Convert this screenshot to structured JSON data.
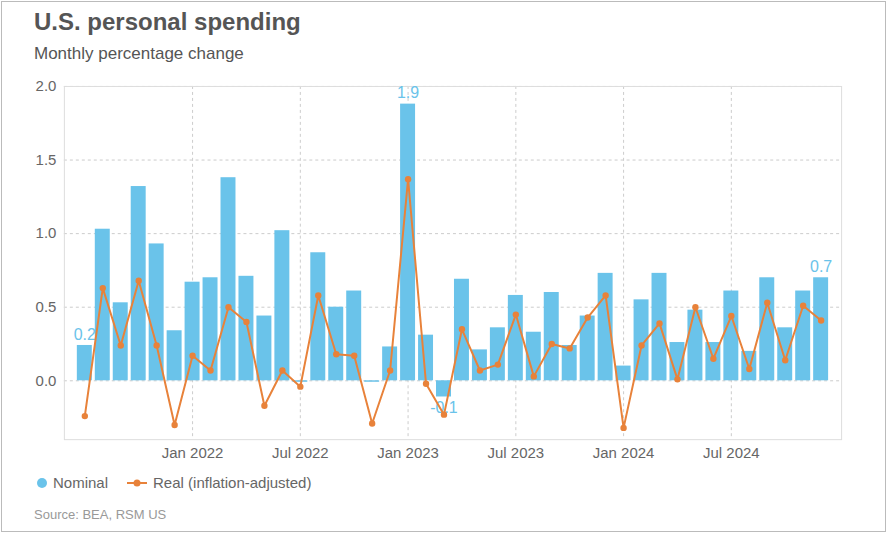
{
  "chart_data": {
    "type": "bar",
    "title": "U.S. personal spending",
    "subtitle": "Monthly percentage change",
    "source": "Source: BEA, RSM US",
    "categories": [
      null,
      null,
      null,
      null,
      null,
      null,
      "Jan 2022",
      null,
      null,
      null,
      null,
      null,
      "Jul 2022",
      null,
      null,
      null,
      null,
      null,
      "Jan 2023",
      null,
      null,
      null,
      null,
      null,
      "Jul 2023",
      null,
      null,
      null,
      null,
      null,
      "Jan 2024",
      null,
      null,
      null,
      null,
      null,
      "Jul 2024",
      null,
      null,
      null,
      null,
      null
    ],
    "series": [
      {
        "name": "Nominal",
        "type": "bar",
        "color": "#6ac3ea",
        "values": [
          0.24,
          1.03,
          0.53,
          1.32,
          0.93,
          0.34,
          0.67,
          0.7,
          1.38,
          0.71,
          0.44,
          1.02,
          -0.01,
          0.87,
          0.5,
          0.61,
          -0.01,
          0.23,
          1.88,
          0.31,
          -0.11,
          0.69,
          0.21,
          0.36,
          0.58,
          0.33,
          0.6,
          0.24,
          0.44,
          0.73,
          0.1,
          0.55,
          0.73,
          0.26,
          0.48,
          0.26,
          0.61,
          0.2,
          0.7,
          0.36,
          0.61,
          0.7
        ],
        "value_labels": [
          "0.2",
          null,
          null,
          null,
          null,
          null,
          null,
          null,
          null,
          null,
          null,
          null,
          null,
          null,
          null,
          null,
          null,
          null,
          "1.9",
          null,
          "-0.1",
          null,
          null,
          null,
          null,
          null,
          null,
          null,
          null,
          null,
          null,
          null,
          null,
          null,
          null,
          null,
          null,
          null,
          null,
          null,
          null,
          "0.7"
        ]
      },
      {
        "name": "Real (inflation-adjusted)",
        "type": "line",
        "color": "#e8823a",
        "marker": "circle",
        "values": [
          -0.24,
          0.63,
          0.24,
          0.68,
          0.24,
          -0.3,
          0.17,
          0.07,
          0.5,
          0.4,
          -0.17,
          0.07,
          -0.04,
          0.58,
          0.18,
          0.17,
          -0.29,
          0.07,
          1.37,
          -0.02,
          -0.23,
          0.35,
          0.07,
          0.11,
          0.45,
          0.03,
          0.25,
          0.22,
          0.43,
          0.58,
          -0.32,
          0.24,
          0.39,
          0.01,
          0.5,
          0.15,
          0.44,
          0.08,
          0.53,
          0.14,
          0.51,
          0.41
        ]
      }
    ],
    "ylim": [
      -0.4,
      2.0
    ],
    "yticks": [
      {
        "value": 0,
        "label": "0.0"
      },
      {
        "value": 0.5,
        "label": "0.5"
      },
      {
        "value": 1,
        "label": "1.0"
      },
      {
        "value": 1.5,
        "label": "1.5"
      },
      {
        "value": 2,
        "label": "2.0"
      }
    ],
    "grid": true,
    "legend": "bottom"
  }
}
